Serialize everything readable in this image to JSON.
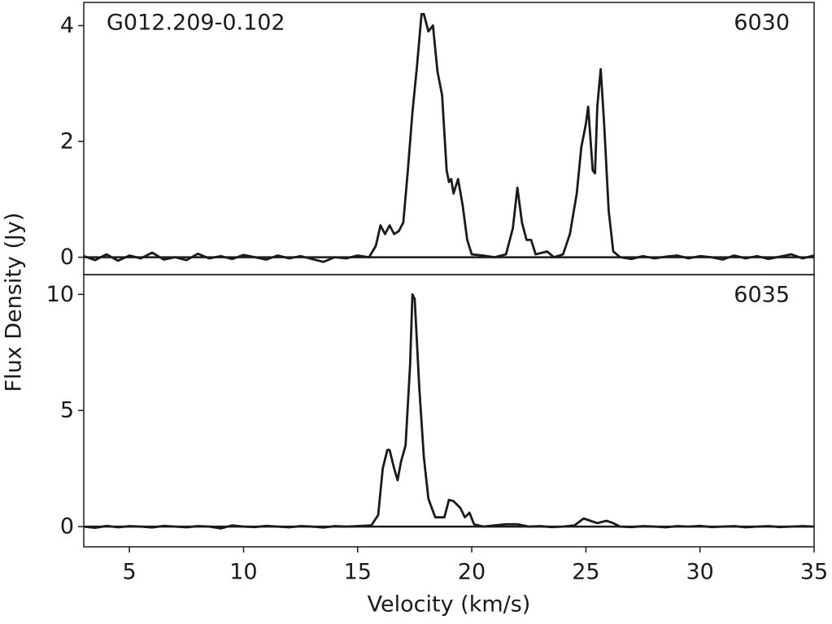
{
  "chart_data": [
    {
      "type": "line",
      "annotation": "G012.209-0.102",
      "label": "6030",
      "ylabel": "Flux Density (Jy)",
      "color": "#1a1a1a",
      "xlim": [
        3,
        35
      ],
      "ylim": [
        -0.3,
        4.4
      ],
      "yticks": [
        0,
        2,
        4
      ],
      "x": [
        3,
        3.5,
        4,
        4.5,
        5,
        5.5,
        6,
        6.5,
        7,
        7.5,
        8,
        8.5,
        9,
        9.5,
        10,
        10.5,
        11,
        11.5,
        12,
        12.5,
        13,
        13.5,
        14,
        14.5,
        15,
        15.5,
        15.8,
        16.0,
        16.2,
        16.4,
        16.6,
        16.8,
        17.0,
        17.2,
        17.4,
        17.6,
        17.8,
        17.9,
        18.1,
        18.3,
        18.5,
        18.7,
        18.9,
        19.0,
        19.1,
        19.2,
        19.4,
        19.6,
        19.8,
        20.0,
        20.5,
        21.0,
        21.5,
        21.8,
        22.0,
        22.2,
        22.4,
        22.6,
        22.8,
        23.3,
        23.6,
        24.0,
        24.3,
        24.6,
        24.8,
        25.0,
        25.1,
        25.3,
        25.4,
        25.5,
        25.65,
        25.8,
        26.0,
        26.2,
        26.5,
        27,
        27.5,
        28,
        28.5,
        29,
        29.5,
        30,
        30.5,
        31,
        31.5,
        32,
        32.5,
        33,
        33.5,
        34,
        34.5,
        35
      ],
      "values": [
        0.02,
        -0.05,
        0.05,
        -0.06,
        0.03,
        -0.02,
        0.08,
        -0.04,
        0.0,
        -0.05,
        0.06,
        -0.02,
        0.02,
        -0.03,
        0.04,
        0.0,
        -0.04,
        0.03,
        -0.02,
        0.02,
        -0.03,
        -0.08,
        0.0,
        -0.02,
        0.03,
        0.0,
        0.2,
        0.55,
        0.4,
        0.55,
        0.4,
        0.45,
        0.6,
        1.5,
        2.5,
        3.3,
        4.2,
        4.2,
        3.9,
        4.0,
        3.2,
        2.8,
        1.5,
        1.3,
        1.35,
        1.1,
        1.35,
        0.9,
        0.3,
        0.05,
        0.03,
        0.0,
        0.05,
        0.5,
        1.2,
        0.6,
        0.3,
        0.3,
        0.05,
        0.1,
        0.0,
        0.05,
        0.4,
        1.1,
        1.9,
        2.3,
        2.6,
        1.5,
        1.45,
        2.6,
        3.25,
        2.3,
        0.8,
        0.1,
        0.0,
        -0.03,
        0.02,
        -0.02,
        0.01,
        0.03,
        -0.02,
        0.02,
        0.0,
        -0.04,
        0.03,
        -0.02,
        0.02,
        -0.03,
        0.01,
        0.05,
        -0.02,
        0.03
      ]
    },
    {
      "type": "line",
      "label": "6035",
      "xlabel": "Velocity (km/s)",
      "color": "#1a1a1a",
      "xlim": [
        3,
        35
      ],
      "ylim": [
        -0.87,
        10.85
      ],
      "yticks": [
        0,
        5,
        10
      ],
      "xticks": [
        5,
        10,
        15,
        20,
        25,
        30,
        35
      ],
      "x": [
        3,
        3.5,
        4,
        4.5,
        5,
        5.5,
        6,
        6.5,
        7,
        7.5,
        8,
        8.5,
        9,
        9.5,
        10,
        10.5,
        11,
        11.5,
        12,
        12.5,
        13,
        13.5,
        14,
        14.5,
        15,
        15.6,
        15.9,
        16.1,
        16.3,
        16.4,
        16.6,
        16.75,
        16.9,
        17.1,
        17.3,
        17.4,
        17.5,
        17.7,
        17.9,
        18.1,
        18.4,
        18.8,
        19.0,
        19.2,
        19.5,
        19.7,
        19.9,
        20.1,
        20.5,
        21.0,
        21.5,
        22.0,
        22.5,
        23,
        23.5,
        24,
        24.5,
        24.9,
        25.2,
        25.5,
        25.9,
        26.2,
        26.5,
        27,
        27.5,
        28,
        28.5,
        29,
        29.5,
        30,
        30.5,
        31,
        31.5,
        32,
        32.5,
        33,
        33.5,
        34,
        34.5,
        35
      ],
      "values": [
        0.0,
        -0.05,
        0.03,
        -0.03,
        0.02,
        0.0,
        -0.04,
        0.03,
        0.0,
        -0.03,
        0.02,
        0.0,
        -0.08,
        0.05,
        0.0,
        -0.02,
        0.03,
        0.0,
        -0.03,
        0.02,
        0.0,
        -0.04,
        0.02,
        0.0,
        0.02,
        0.05,
        0.5,
        2.5,
        3.3,
        3.3,
        2.5,
        2.0,
        2.8,
        3.5,
        7.0,
        10.0,
        9.8,
        6.0,
        3.0,
        1.2,
        0.4,
        0.4,
        1.15,
        1.1,
        0.8,
        0.4,
        0.6,
        0.1,
        0.0,
        0.05,
        0.1,
        0.1,
        0.0,
        0.02,
        -0.02,
        0.0,
        0.05,
        0.35,
        0.25,
        0.15,
        0.25,
        0.15,
        0.0,
        -0.02,
        0.02,
        0.0,
        -0.03,
        0.02,
        0.0,
        0.03,
        -0.02,
        0.0,
        0.02,
        -0.03,
        0.0,
        0.02,
        -0.02,
        0.0,
        0.02,
        0.0
      ]
    }
  ]
}
